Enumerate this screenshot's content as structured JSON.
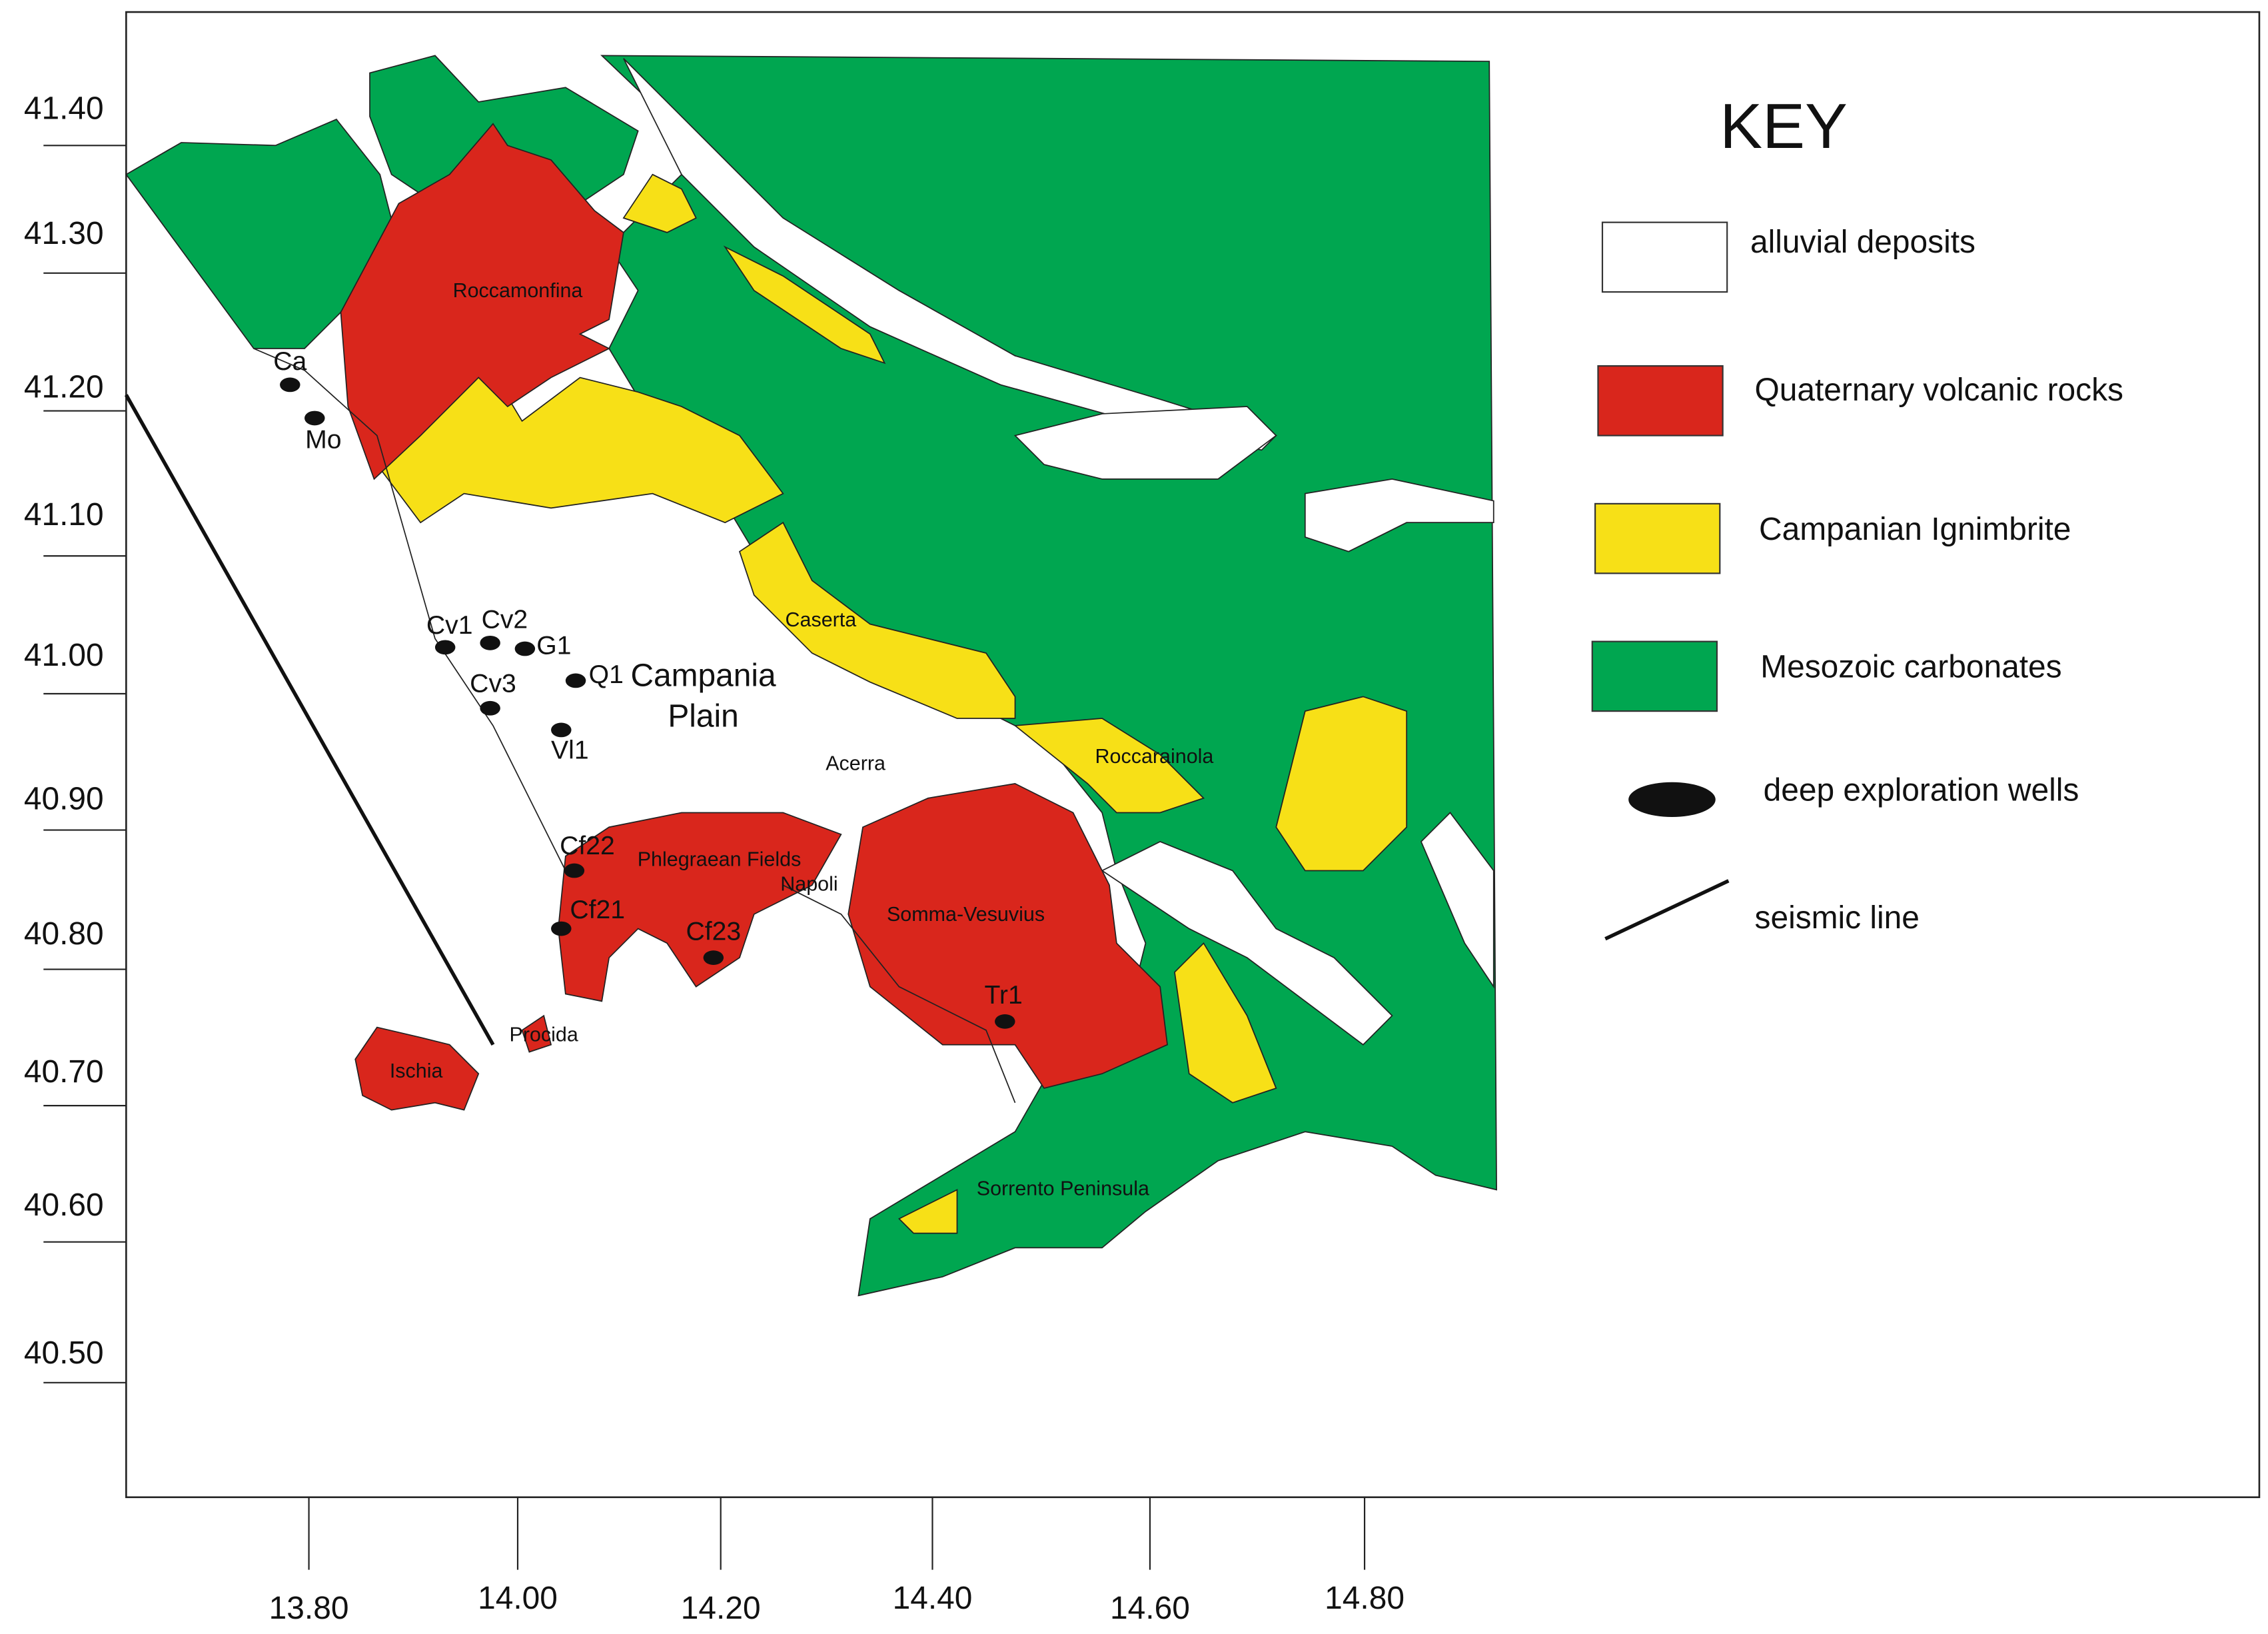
{
  "key": {
    "title": "KEY",
    "items": [
      {
        "label": "alluvial deposits"
      },
      {
        "label": "Quaternary volcanic rocks"
      },
      {
        "label": "Campanian Ignimbrite"
      },
      {
        "label": "Mesozoic carbonates"
      },
      {
        "label": "deep exploration wells"
      },
      {
        "label": "seismic line"
      }
    ]
  },
  "places": [
    {
      "label": "Roccamonfina"
    },
    {
      "label": "Caserta"
    },
    {
      "lines": [
        "Campania",
        "Plain"
      ]
    },
    {
      "label": "Acerra"
    },
    {
      "label": "Roccarainola"
    },
    {
      "label": "Phlegraean Fields"
    },
    {
      "label": "Napoli"
    },
    {
      "label": "Somma-Vesuvius"
    },
    {
      "label": "Procida"
    },
    {
      "label": "Ischia"
    },
    {
      "label": "Sorrento Peninsula"
    }
  ],
  "wells": [
    "Ca",
    "Mo",
    "Cv1",
    "Cv2",
    "G1",
    "Q1",
    "Cv3",
    "Vl1",
    "Cf22",
    "Cf21",
    "Cf23",
    "Tr1"
  ],
  "latitude_ticks": [
    "41.40",
    "41.30",
    "41.20",
    "41.10",
    "41.00",
    "40.90",
    "40.80",
    "40.70",
    "40.60",
    "40.50"
  ],
  "longitude_ticks": [
    "13.80",
    "14.00",
    "14.20",
    "14.40",
    "14.60",
    "14.80"
  ]
}
